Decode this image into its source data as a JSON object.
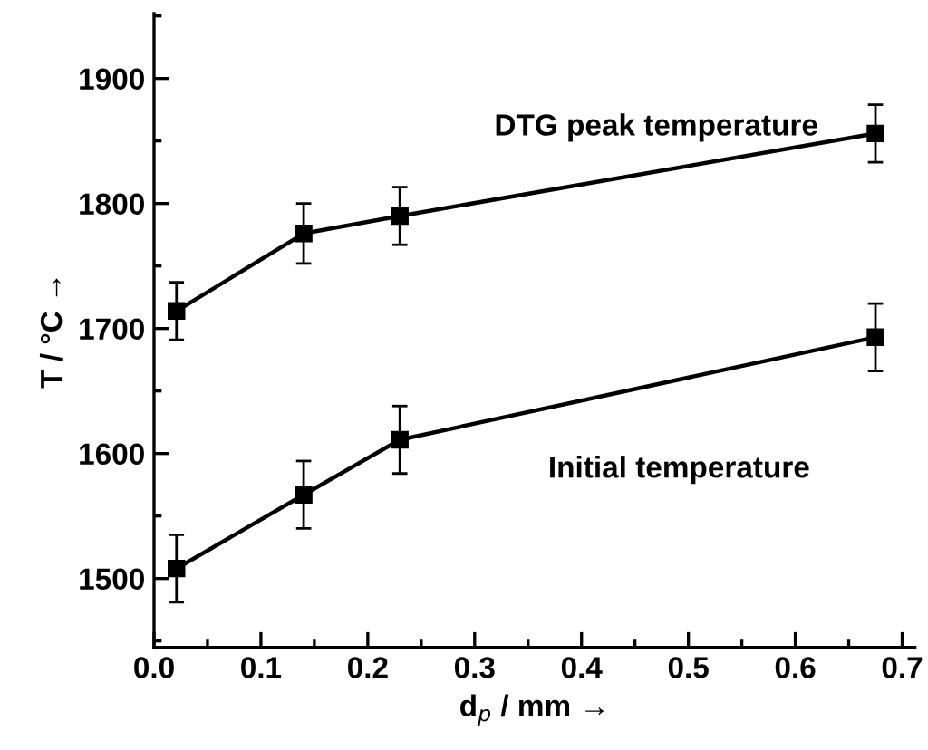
{
  "chart_data": {
    "type": "line",
    "xlabel": "d$_{p}$ / mm →",
    "ylabel": "T / °C →",
    "xlim": [
      0,
      0.712
    ],
    "xticks": [
      {
        "value": 0,
        "label": "0.0"
      },
      0.1,
      0.2,
      0.3,
      0.4,
      0.5,
      0.6,
      0.7
    ],
    "ylim": [
      1445,
      1952
    ],
    "yticks": [
      1500,
      1600,
      1700,
      1800,
      1900
    ],
    "marker": "square",
    "line_style": "solid",
    "grid": false,
    "x": [
      0.021,
      0.14,
      0.23,
      0.675
    ],
    "series": [
      {
        "color": "#000000",
        "values": [
          1714,
          1776,
          1790,
          1856
        ],
        "errors": [
          23,
          24,
          23,
          23
        ]
      },
      {
        "color": "#000000",
        "values": [
          1508,
          1567,
          1611,
          1693
        ],
        "errors": [
          27,
          27,
          27,
          27
        ]
      }
    ],
    "annotations": [
      "DTG peak temperature",
      "Initial temperature"
    ]
  }
}
